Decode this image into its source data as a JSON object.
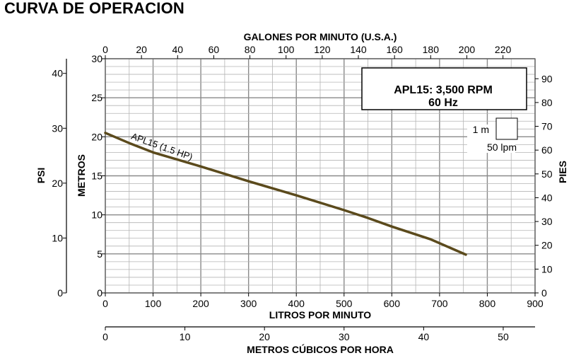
{
  "page_title": "CURVA DE OPERACION",
  "chart_data": {
    "type": "line",
    "title": "CURVA DE OPERACION",
    "legend": {
      "line1": "APL15: 3,500 RPM",
      "line2": "60 Hz",
      "placement": "top-right"
    },
    "grid_scale": {
      "vertical_label": "1 m",
      "horizontal_label": "50 lpm"
    },
    "grid": true,
    "x_bottom": {
      "label": "LITROS POR MINUTO",
      "range": [
        0,
        900
      ],
      "ticks": [
        0,
        100,
        200,
        300,
        400,
        500,
        600,
        700,
        800,
        900
      ]
    },
    "x_top": {
      "label": "GALONES POR MINUTO (U.S.A.)",
      "range": [
        0,
        237.75
      ],
      "ticks": [
        0,
        20,
        40,
        60,
        80,
        100,
        120,
        140,
        160,
        180,
        200,
        220
      ]
    },
    "x_m3h": {
      "label": "METROS CÚBICOS POR HORA",
      "range": [
        0,
        54
      ],
      "ticks": [
        0,
        10,
        20,
        30,
        40,
        50
      ]
    },
    "y_left": {
      "label": "METROS",
      "range": [
        0,
        30
      ],
      "ticks": [
        0,
        5,
        10,
        15,
        20,
        25,
        30
      ]
    },
    "y_psi": {
      "label": "PSI",
      "range": [
        0,
        42.67
      ],
      "ticks": [
        0,
        10,
        20,
        30,
        40
      ]
    },
    "y_right": {
      "label": "PIES",
      "range": [
        0,
        98.4
      ],
      "ticks": [
        0,
        10,
        20,
        30,
        40,
        50,
        60,
        70,
        80,
        90
      ]
    },
    "series": [
      {
        "name": "APL15 (1.5 HP)",
        "color": "#5b4a1c",
        "x": [
          0,
          50,
          100,
          200,
          300,
          400,
          500,
          550,
          600,
          680,
          755
        ],
        "y": [
          20.5,
          19.2,
          18.0,
          16.2,
          14.3,
          12.5,
          10.6,
          9.6,
          8.5,
          6.9,
          4.9
        ]
      }
    ]
  }
}
